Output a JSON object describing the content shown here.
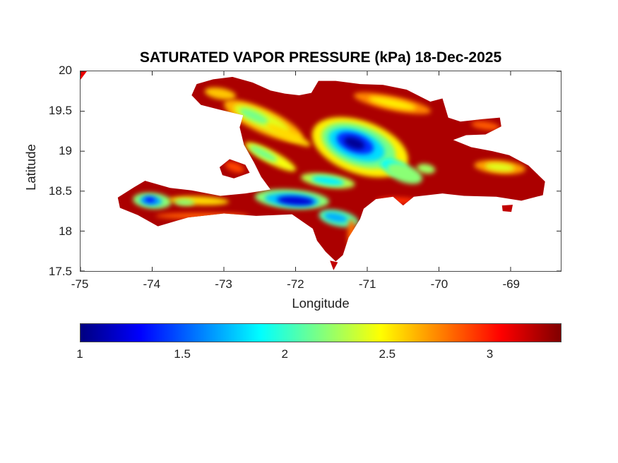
{
  "chart_data": {
    "type": "heatmap",
    "title": "SATURATED VAPOR PRESSURE (kPa) 18-Dec-2025",
    "xlabel": "Longitude",
    "ylabel": "Latitude",
    "xlim": [
      -75,
      -68.3
    ],
    "ylim": [
      17.5,
      20
    ],
    "xticks": [
      -75,
      -74,
      -73,
      -72,
      -71,
      -70,
      -69
    ],
    "yticks": [
      17.5,
      18,
      18.5,
      19,
      19.5,
      20
    ],
    "grid": false,
    "colormap": "jet",
    "colorbar": {
      "orientation": "horizontal",
      "min": 1,
      "max": 3.35,
      "ticks": [
        1,
        1.5,
        2,
        2.5,
        3
      ]
    },
    "base_value_kPa": 3.25,
    "island_outline": [
      [
        -73.45,
        19.7
      ],
      [
        -73.38,
        19.84
      ],
      [
        -73.15,
        19.9
      ],
      [
        -72.88,
        19.93
      ],
      [
        -72.6,
        19.86
      ],
      [
        -72.35,
        19.76
      ],
      [
        -72.15,
        19.72
      ],
      [
        -71.95,
        19.7
      ],
      [
        -71.78,
        19.73
      ],
      [
        -71.68,
        19.88
      ],
      [
        -71.44,
        19.88
      ],
      [
        -71.1,
        19.84
      ],
      [
        -70.78,
        19.83
      ],
      [
        -70.45,
        19.77
      ],
      [
        -70.12,
        19.62
      ],
      [
        -69.95,
        19.66
      ],
      [
        -69.87,
        19.42
      ],
      [
        -69.7,
        19.37
      ],
      [
        -69.4,
        19.4
      ],
      [
        -69.15,
        19.42
      ],
      [
        -69.13,
        19.31
      ],
      [
        -69.35,
        19.21
      ],
      [
        -69.62,
        19.2
      ],
      [
        -69.8,
        19.14
      ],
      [
        -69.55,
        19.05
      ],
      [
        -69.25,
        19.0
      ],
      [
        -69.02,
        18.95
      ],
      [
        -68.75,
        18.82
      ],
      [
        -68.52,
        18.62
      ],
      [
        -68.55,
        18.45
      ],
      [
        -68.85,
        18.38
      ],
      [
        -69.2,
        18.43
      ],
      [
        -69.65,
        18.44
      ],
      [
        -69.95,
        18.47
      ],
      [
        -70.35,
        18.43
      ],
      [
        -70.5,
        18.32
      ],
      [
        -70.64,
        18.43
      ],
      [
        -70.88,
        18.4
      ],
      [
        -71.05,
        18.28
      ],
      [
        -71.1,
        18.15
      ],
      [
        -71.26,
        17.92
      ],
      [
        -71.34,
        17.7
      ],
      [
        -71.44,
        17.62
      ],
      [
        -71.58,
        17.74
      ],
      [
        -71.7,
        17.88
      ],
      [
        -71.76,
        18.03
      ],
      [
        -72.05,
        18.21
      ],
      [
        -72.55,
        18.19
      ],
      [
        -73.0,
        18.22
      ],
      [
        -73.5,
        18.17
      ],
      [
        -73.92,
        18.06
      ],
      [
        -74.2,
        18.2
      ],
      [
        -74.45,
        18.29
      ],
      [
        -74.48,
        18.42
      ],
      [
        -74.25,
        18.55
      ],
      [
        -74.1,
        18.63
      ],
      [
        -73.75,
        18.54
      ],
      [
        -73.45,
        18.51
      ],
      [
        -73.05,
        18.44
      ],
      [
        -72.7,
        18.47
      ],
      [
        -72.35,
        18.52
      ],
      [
        -72.48,
        18.68
      ],
      [
        -72.58,
        18.86
      ],
      [
        -72.72,
        19.08
      ],
      [
        -72.78,
        19.3
      ],
      [
        -72.73,
        19.45
      ],
      [
        -73.06,
        19.52
      ],
      [
        -73.32,
        19.58
      ]
    ],
    "gonave_outline": [
      [
        -73.06,
        18.8
      ],
      [
        -72.92,
        18.9
      ],
      [
        -72.7,
        18.83
      ],
      [
        -72.64,
        18.73
      ],
      [
        -72.86,
        18.66
      ],
      [
        -73.02,
        18.7
      ]
    ],
    "islets": [
      {
        "name": "saona",
        "value": 3.2,
        "outline": [
          [
            -69.12,
            18.32
          ],
          [
            -68.97,
            18.33
          ],
          [
            -68.99,
            18.24
          ],
          [
            -69.11,
            18.25
          ]
        ]
      },
      {
        "name": "beata",
        "value": 3.2,
        "outline": [
          [
            -71.52,
            17.63
          ],
          [
            -71.41,
            17.61
          ],
          [
            -71.47,
            17.51
          ]
        ]
      }
    ],
    "corner_artifact": {
      "lon": -75.0,
      "lat": 20.0,
      "value": 3.1
    },
    "features": [
      {
        "name": "cordillera-septentrional-outer",
        "lon": -70.65,
        "lat": 19.6,
        "rx": 0.55,
        "ry": 0.09,
        "rot": 12,
        "value": 2.75
      },
      {
        "name": "cordillera-septentrional-core",
        "lon": -70.65,
        "lat": 19.6,
        "rx": 0.34,
        "ry": 0.05,
        "rot": 12,
        "value": 2.5
      },
      {
        "name": "massif-du-nord-outer",
        "lon": -72.45,
        "lat": 19.38,
        "rx": 0.6,
        "ry": 0.15,
        "rot": 25,
        "value": 2.65
      },
      {
        "name": "massif-du-nord-mid",
        "lon": -72.48,
        "lat": 19.4,
        "rx": 0.42,
        "ry": 0.1,
        "rot": 25,
        "value": 2.4
      },
      {
        "name": "massif-du-nord-core",
        "lon": -72.58,
        "lat": 19.44,
        "rx": 0.22,
        "ry": 0.06,
        "rot": 25,
        "value": 2.15
      },
      {
        "name": "massif-du-nord-south-streak",
        "lon": -72.1,
        "lat": 19.2,
        "rx": 0.34,
        "ry": 0.06,
        "rot": 25,
        "value": 2.55
      },
      {
        "name": "nw-peninsula-patch",
        "lon": -73.05,
        "lat": 19.72,
        "rx": 0.22,
        "ry": 0.07,
        "rot": 10,
        "value": 2.6
      },
      {
        "name": "montagnes-noires",
        "lon": -72.35,
        "lat": 18.93,
        "rx": 0.4,
        "ry": 0.08,
        "rot": 28,
        "value": 2.45
      },
      {
        "name": "montagnes-noires-core",
        "lon": -72.45,
        "lat": 18.97,
        "rx": 0.22,
        "ry": 0.05,
        "rot": 28,
        "value": 2.15
      },
      {
        "name": "cordillera-central-outer",
        "lon": -71.1,
        "lat": 19.05,
        "rx": 0.7,
        "ry": 0.33,
        "rot": 20,
        "value": 2.5
      },
      {
        "name": "cordillera-central-green",
        "lon": -71.12,
        "lat": 19.07,
        "rx": 0.54,
        "ry": 0.25,
        "rot": 20,
        "value": 2.15
      },
      {
        "name": "cordillera-central-cyan",
        "lon": -71.15,
        "lat": 19.08,
        "rx": 0.41,
        "ry": 0.18,
        "rot": 20,
        "value": 1.8
      },
      {
        "name": "cordillera-central-blue",
        "lon": -71.17,
        "lat": 19.1,
        "rx": 0.27,
        "ry": 0.12,
        "rot": 20,
        "value": 1.4
      },
      {
        "name": "cordillera-central-deep",
        "lon": -71.18,
        "lat": 19.1,
        "rx": 0.15,
        "ry": 0.065,
        "rot": 20,
        "value": 1.05
      },
      {
        "name": "cordillera-central-se-cyan",
        "lon": -70.62,
        "lat": 18.8,
        "rx": 0.2,
        "ry": 0.09,
        "rot": 20,
        "value": 1.9
      },
      {
        "name": "cordillera-central-se-green",
        "lon": -70.48,
        "lat": 18.72,
        "rx": 0.26,
        "ry": 0.11,
        "rot": 20,
        "value": 2.2
      },
      {
        "name": "sierra-de-yamasa",
        "lon": -70.18,
        "lat": 18.78,
        "rx": 0.13,
        "ry": 0.06,
        "rot": 10,
        "value": 2.25
      },
      {
        "name": "sierra-de-neiba",
        "lon": -71.55,
        "lat": 18.63,
        "rx": 0.38,
        "ry": 0.085,
        "rot": 8,
        "value": 2.3
      },
      {
        "name": "sierra-de-neiba-core",
        "lon": -71.55,
        "lat": 18.63,
        "rx": 0.23,
        "ry": 0.05,
        "rot": 8,
        "value": 1.85
      },
      {
        "name": "massif-de-la-selle-outer",
        "lon": -72.05,
        "lat": 18.4,
        "rx": 0.52,
        "ry": 0.12,
        "rot": 4,
        "value": 2.2
      },
      {
        "name": "massif-de-la-selle-cyan",
        "lon": -72.05,
        "lat": 18.39,
        "rx": 0.38,
        "ry": 0.085,
        "rot": 4,
        "value": 1.75
      },
      {
        "name": "massif-de-la-selle-blue",
        "lon": -72.0,
        "lat": 18.38,
        "rx": 0.26,
        "ry": 0.055,
        "rot": 4,
        "value": 1.2
      },
      {
        "name": "sierra-de-bahoruco",
        "lon": -71.4,
        "lat": 18.16,
        "rx": 0.28,
        "ry": 0.1,
        "rot": 12,
        "value": 2.1
      },
      {
        "name": "sierra-de-bahoruco-core",
        "lon": -71.44,
        "lat": 18.17,
        "rx": 0.17,
        "ry": 0.055,
        "rot": 12,
        "value": 1.7
      },
      {
        "name": "massif-de-la-hotte-outer",
        "lon": -74.0,
        "lat": 18.38,
        "rx": 0.27,
        "ry": 0.1,
        "rot": 5,
        "value": 2.2
      },
      {
        "name": "massif-de-la-hotte-cyan",
        "lon": -74.02,
        "lat": 18.38,
        "rx": 0.16,
        "ry": 0.06,
        "rot": 5,
        "value": 1.7
      },
      {
        "name": "massif-de-la-hotte-blue",
        "lon": -74.03,
        "lat": 18.39,
        "rx": 0.08,
        "ry": 0.035,
        "rot": 5,
        "value": 1.35
      },
      {
        "name": "tiburon-spine",
        "lon": -73.35,
        "lat": 18.38,
        "rx": 0.42,
        "ry": 0.055,
        "rot": 2,
        "value": 2.55
      },
      {
        "name": "tiburon-spine-green",
        "lon": -73.55,
        "lat": 18.36,
        "rx": 0.14,
        "ry": 0.04,
        "rot": 2,
        "value": 2.2
      },
      {
        "name": "cordillera-oriental",
        "lon": -69.15,
        "lat": 18.8,
        "rx": 0.36,
        "ry": 0.085,
        "rot": 5,
        "value": 2.7
      },
      {
        "name": "cordillera-oriental-core",
        "lon": -69.15,
        "lat": 18.8,
        "rx": 0.21,
        "ry": 0.05,
        "rot": 5,
        "value": 2.4
      },
      {
        "name": "samana-ridge",
        "lon": -69.35,
        "lat": 19.32,
        "rx": 0.2,
        "ry": 0.05,
        "rot": 8,
        "value": 2.85
      },
      {
        "name": "tiburon-south-coast-fringe",
        "lon": -73.3,
        "lat": 18.19,
        "rx": 0.65,
        "ry": 0.04,
        "rot": 0,
        "value": 2.85
      },
      {
        "name": "barahona-east-fringe",
        "lon": -71.22,
        "lat": 17.95,
        "rx": 0.055,
        "ry": 0.2,
        "rot": 0,
        "value": 2.8
      },
      {
        "name": "bani-coast-fringe",
        "lon": -70.6,
        "lat": 18.38,
        "rx": 0.28,
        "ry": 0.045,
        "rot": 0,
        "value": 2.95
      },
      {
        "name": "gonave-center",
        "group": "gonave",
        "lon": -72.85,
        "lat": 18.8,
        "rx": 0.14,
        "ry": 0.055,
        "rot": 20,
        "value": 2.9
      }
    ]
  }
}
